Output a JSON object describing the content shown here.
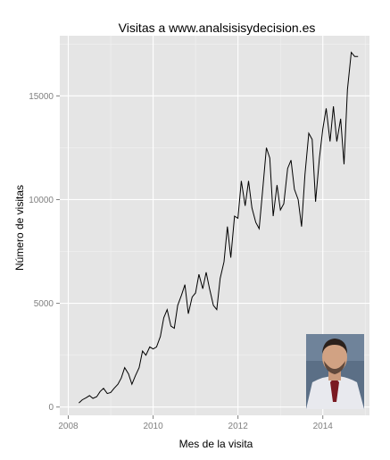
{
  "chart_data": {
    "type": "line",
    "title": "Visitas a www.analsisisydecision.es",
    "xlabel": "Mes de la visita",
    "ylabel": "Número de visitas",
    "xlim": [
      2007.8,
      2015.1
    ],
    "ylim": [
      -400,
      17900
    ],
    "xticks": [
      2008,
      2010,
      2012,
      2014
    ],
    "xtick_labels": [
      "2008",
      "2010",
      "2012",
      "2014"
    ],
    "yticks": [
      0,
      5000,
      10000,
      15000
    ],
    "ytick_labels": [
      "0",
      "5000",
      "10000",
      "15000"
    ],
    "grid": true,
    "legend": "none",
    "colors": {
      "panel_background": "#e5e5e5",
      "grid_major": "#ffffff",
      "grid_minor": "#f2f2f2",
      "line": "#000000"
    },
    "series": [
      {
        "x": [
          2008.25,
          2008.33,
          2008.42,
          2008.5,
          2008.58,
          2008.67,
          2008.75,
          2008.83,
          2008.92,
          2009.0,
          2009.08,
          2009.17,
          2009.25,
          2009.33,
          2009.42,
          2009.5,
          2009.58,
          2009.67,
          2009.75,
          2009.83,
          2009.92,
          2010.0,
          2010.08,
          2010.17,
          2010.25,
          2010.33,
          2010.42,
          2010.5,
          2010.58,
          2010.67,
          2010.75,
          2010.83,
          2010.92,
          2011.0,
          2011.08,
          2011.17,
          2011.25,
          2011.33,
          2011.42,
          2011.5,
          2011.58,
          2011.67,
          2011.75,
          2011.83,
          2011.92,
          2012.0,
          2012.08,
          2012.17,
          2012.25,
          2012.33,
          2012.42,
          2012.5,
          2012.58,
          2012.67,
          2012.75,
          2012.83,
          2012.92,
          2013.0,
          2013.08,
          2013.17,
          2013.25,
          2013.33,
          2013.42,
          2013.5,
          2013.58,
          2013.67,
          2013.75,
          2013.83,
          2013.92,
          2014.0,
          2014.08,
          2014.17,
          2014.25,
          2014.33,
          2014.42,
          2014.5,
          2014.58,
          2014.67,
          2014.75,
          2014.83
        ],
        "y": [
          200,
          350,
          450,
          550,
          420,
          500,
          750,
          900,
          650,
          700,
          900,
          1100,
          1400,
          1900,
          1600,
          1100,
          1500,
          1900,
          2700,
          2500,
          2900,
          2800,
          2900,
          3400,
          4300,
          4700,
          3900,
          3800,
          4900,
          5400,
          5900,
          4500,
          5300,
          5500,
          6400,
          5700,
          6500,
          5700,
          4900,
          4700,
          6200,
          7000,
          8700,
          7200,
          9200,
          9100,
          10900,
          9700,
          10900,
          9600,
          8900,
          8600,
          10400,
          12500,
          12000,
          9200,
          10700,
          9500,
          9800,
          11500,
          11900,
          10500,
          10000,
          8700,
          11200,
          13200,
          12900,
          9900,
          12000,
          13400,
          14400,
          12800,
          14500,
          12800,
          13900,
          11700,
          15300,
          17100,
          16900,
          16900
        ]
      }
    ]
  }
}
